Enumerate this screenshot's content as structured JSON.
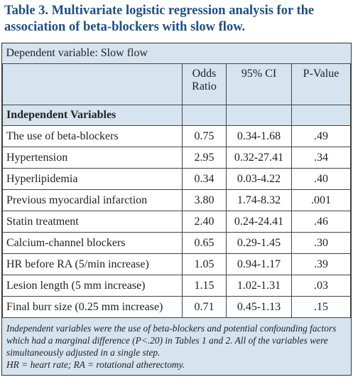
{
  "title": "Table 3. Multivariate logistic regression analysis for the association of beta-blockers with slow flow.",
  "table": {
    "caption": "Dependent variable: Slow flow",
    "columns": [
      "Odds Ratio",
      "95% CI",
      "P-Value"
    ],
    "section": "Independent Variables",
    "rows": [
      [
        "The use of beta-blockers",
        "0.75",
        "0.34-1.68",
        ".49"
      ],
      [
        "Hypertension",
        "2.95",
        "0.32-27.41",
        ".34"
      ],
      [
        "Hyperlipidemia",
        "0.34",
        "0.03-4.22",
        ".40"
      ],
      [
        "Previous myocardial infarction",
        "3.80",
        "1.74-8.32",
        ".001"
      ],
      [
        "Statin treatment",
        "2.40",
        "0.24-24.41",
        ".46"
      ],
      [
        "Calcium-channel blockers",
        "0.65",
        "0.29-1.45",
        ".30"
      ],
      [
        "HR before RA (5/min increase)",
        "1.05",
        "0.94-1.17",
        ".39"
      ],
      [
        "Lesion length (5 mm increase)",
        "1.15",
        "1.02-1.31",
        ".03"
      ],
      [
        "Final burr size (0.25 mm increase)",
        "0.71",
        "0.45-1.13",
        ".15"
      ]
    ],
    "footnote": [
      "Independent variables were the use of beta-blockers and potential confounding factors which had a marginal difference (P<.20) in Tables 1 and 2. All of the variables were simultaneously adjusted in a single step.",
      "HR = heart rate; RA = rotational atherectomy."
    ]
  }
}
